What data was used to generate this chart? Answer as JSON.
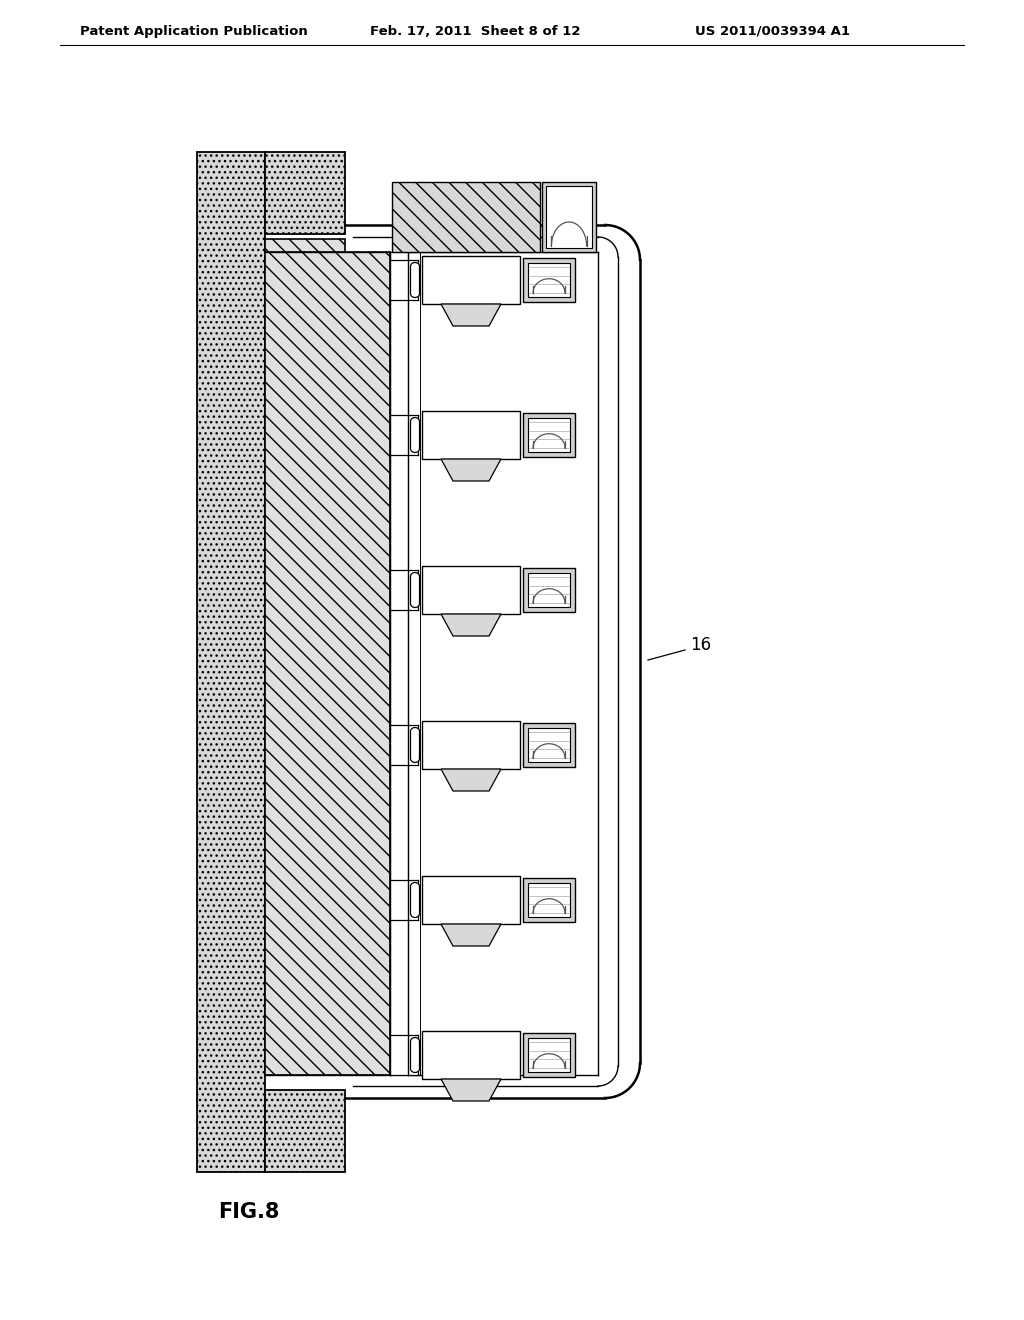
{
  "title_left": "Patent Application Publication",
  "title_mid": "Feb. 17, 2011  Sheet 8 of 12",
  "title_right": "US 2011/0039394 A1",
  "fig_label": "FIG.8",
  "component_label": "16",
  "bg": "#ffffff",
  "lc": "#000000",
  "hatch_gray": "#d0d0d0",
  "inner_gray": "#e0e0e0",
  "white": "#ffffff",
  "light_gray": "#e8e8e8"
}
